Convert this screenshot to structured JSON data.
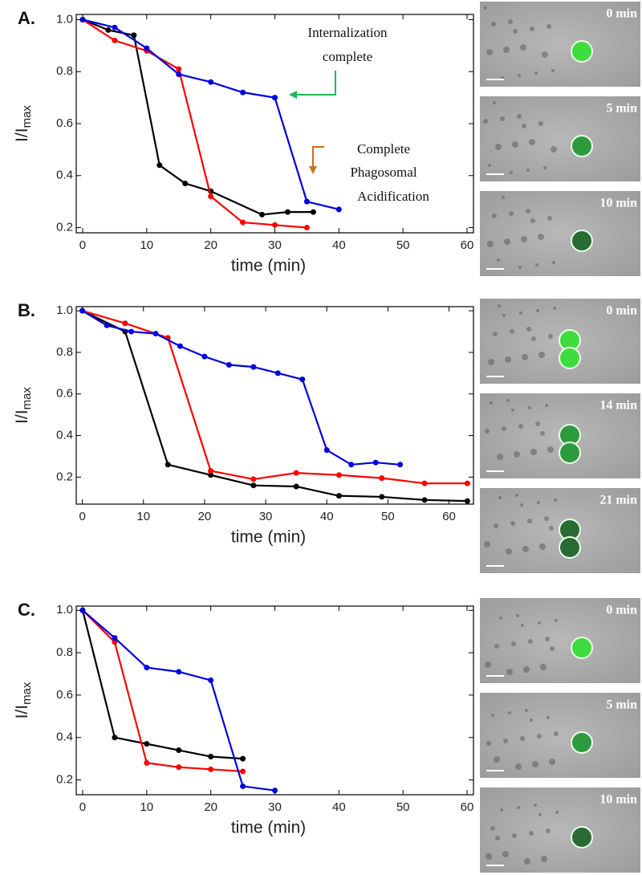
{
  "chart_data": [
    {
      "type": "line",
      "panel_label": "A.",
      "xlabel": "time (min)",
      "ylabel": "I/I",
      "ylabel_subscript": "max",
      "xlim": [
        -1,
        61
      ],
      "ylim": [
        0.18,
        1.02
      ],
      "xticks": [
        0,
        10,
        20,
        30,
        40,
        50,
        60
      ],
      "yticks": [
        0.2,
        0.4,
        0.6,
        0.8,
        {
          "value": 1,
          "label": "1.0"
        }
      ],
      "annotations": [
        {
          "lines": [
            "Internalization",
            "complete"
          ]
        },
        {
          "lines": [
            "Complete",
            "Phagosomal",
            "Acidification"
          ]
        }
      ],
      "image_labels": [
        "0 min",
        "5 min",
        "10 min"
      ],
      "series": [
        {
          "color": "#000000",
          "x": [
            0,
            4,
            8,
            12,
            16,
            20,
            28,
            32,
            36
          ],
          "values": [
            1,
            0.96,
            0.94,
            0.44,
            0.37,
            0.34,
            0.25,
            0.26,
            0.26
          ]
        },
        {
          "color": "#ff0000",
          "x": [
            0,
            5,
            10,
            15,
            20,
            25,
            30,
            35
          ],
          "values": [
            1,
            0.92,
            0.88,
            0.81,
            0.32,
            0.22,
            0.21,
            0.2
          ]
        },
        {
          "color": "#0000dd",
          "x": [
            0,
            5,
            10,
            15,
            20,
            25,
            30,
            35,
            40
          ],
          "values": [
            1,
            0.97,
            0.89,
            0.79,
            0.76,
            0.72,
            0.7,
            0.3,
            0.27
          ]
        }
      ]
    },
    {
      "type": "line",
      "panel_label": "B.",
      "xlabel": "time (min)",
      "ylabel": "I/I",
      "ylabel_subscript": "max",
      "xlim": [
        -1,
        64
      ],
      "ylim": [
        0.07,
        1.02
      ],
      "xticks": [
        0,
        10,
        20,
        30,
        40,
        50,
        60
      ],
      "yticks": [
        0.2,
        0.4,
        0.6,
        0.8,
        {
          "value": 1,
          "label": "1.0"
        }
      ],
      "image_labels": [
        "0 min",
        "14 min",
        "21 min"
      ],
      "series": [
        {
          "color": "#000000",
          "x": [
            0,
            7,
            14,
            21,
            28,
            35,
            42,
            49,
            56,
            63
          ],
          "values": [
            1,
            0.9,
            0.26,
            0.21,
            0.16,
            0.155,
            0.11,
            0.105,
            0.09,
            0.085
          ]
        },
        {
          "color": "#ff0000",
          "x": [
            0,
            7,
            14,
            21,
            28,
            35,
            42,
            49,
            56,
            63
          ],
          "values": [
            1,
            0.94,
            0.87,
            0.23,
            0.19,
            0.22,
            0.21,
            0.195,
            0.17,
            0.17
          ]
        },
        {
          "color": "#0000dd",
          "x": [
            0,
            4,
            8,
            12,
            16,
            20,
            24,
            28,
            32,
            36,
            40,
            44,
            48,
            52
          ],
          "values": [
            1,
            0.93,
            0.9,
            0.89,
            0.83,
            0.78,
            0.74,
            0.73,
            0.7,
            0.67,
            0.33,
            0.26,
            0.27,
            0.26
          ]
        }
      ]
    },
    {
      "type": "line",
      "panel_label": "C.",
      "xlabel": "time (min)",
      "ylabel": "I/I",
      "ylabel_subscript": "max",
      "xlim": [
        -1,
        61
      ],
      "ylim": [
        0.13,
        1.02
      ],
      "xticks": [
        0,
        10,
        20,
        30,
        40,
        50,
        60
      ],
      "yticks": [
        0.2,
        0.4,
        0.6,
        0.8,
        {
          "value": 1,
          "label": "1.0"
        }
      ],
      "image_labels": [
        "0 min",
        "5 min",
        "10 min"
      ],
      "series": [
        {
          "color": "#000000",
          "x": [
            0,
            5,
            10,
            15,
            20,
            25
          ],
          "values": [
            1,
            0.4,
            0.37,
            0.34,
            0.31,
            0.3
          ]
        },
        {
          "color": "#ff0000",
          "x": [
            0,
            5,
            10,
            15,
            20,
            25
          ],
          "values": [
            1,
            0.85,
            0.28,
            0.26,
            0.25,
            0.24
          ]
        },
        {
          "color": "#0000dd",
          "x": [
            0,
            5,
            10,
            15,
            20,
            25,
            30
          ],
          "values": [
            1,
            0.87,
            0.73,
            0.71,
            0.67,
            0.17,
            0.15
          ]
        }
      ]
    }
  ]
}
